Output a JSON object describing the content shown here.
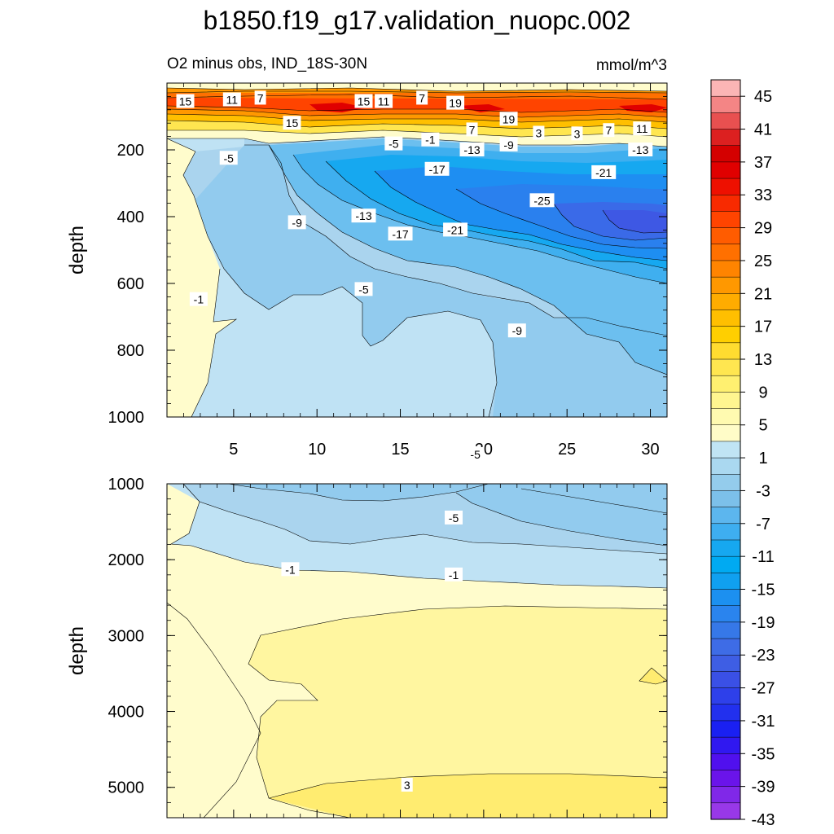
{
  "title": "b1850.f19_g17.validation_nuopc.002",
  "chart_data": {
    "type": "heatmap",
    "variable_label": "O2 minus obs, IND_18S-30N",
    "units": "mmol/m^3",
    "colorbar": {
      "tick_labels": [
        "45",
        "41",
        "37",
        "33",
        "29",
        "25",
        "21",
        "17",
        "13",
        "9",
        "5",
        "1",
        "-3",
        "-7",
        "-11",
        "-15",
        "-19",
        "-23",
        "-27",
        "-31",
        "-35",
        "-39",
        "-43"
      ],
      "colors_top_to_bottom": [
        "#fbb5b5",
        "#f48585",
        "#e85050",
        "#dc2020",
        "#d40000",
        "#e00000",
        "#ee1000",
        "#f82a00",
        "#ff4400",
        "#ff5c00",
        "#ff7000",
        "#ff8400",
        "#ff9800",
        "#ffac00",
        "#ffbf00",
        "#ffcf00",
        "#ffdc30",
        "#ffe650",
        "#fff070",
        "#fff590",
        "#fffab0",
        "#fffcc8",
        "#c0e4f4",
        "#aad8f0",
        "#94ccec",
        "#7cc0ea",
        "#5cb6ee",
        "#3eaef0",
        "#16a8f0",
        "#00aaf2",
        "#10a0f0",
        "#1c90f0",
        "#2a84ee",
        "#3678e8",
        "#3e6ce6",
        "#3e5ee4",
        "#3a50e6",
        "#2e40ea",
        "#2230ee",
        "#1a20f2",
        "#3018f0",
        "#5010ee",
        "#6a14ea",
        "#8028e8",
        "#9838e8"
      ]
    },
    "panels": [
      {
        "name": "upper",
        "ylabel": "depth",
        "y_range": [
          0,
          1000
        ],
        "y_ticks": [
          200,
          400,
          600,
          800,
          1000
        ],
        "x_range": [
          1,
          31
        ],
        "x_ticks": [
          5,
          10,
          15,
          20,
          25,
          30
        ],
        "contour_labels": [
          {
            "text": "15",
            "x": 2.1,
            "y": 55
          },
          {
            "text": "11",
            "x": 4.9,
            "y": 50
          },
          {
            "text": "7",
            "x": 6.6,
            "y": 45
          },
          {
            "text": "15",
            "x": 12.8,
            "y": 55
          },
          {
            "text": "11",
            "x": 14.0,
            "y": 55
          },
          {
            "text": "7",
            "x": 16.3,
            "y": 45
          },
          {
            "text": "19",
            "x": 18.3,
            "y": 60
          },
          {
            "text": "15",
            "x": 8.5,
            "y": 120
          },
          {
            "text": "19",
            "x": 21.5,
            "y": 108
          },
          {
            "text": "7",
            "x": 19.3,
            "y": 140
          },
          {
            "text": "3",
            "x": 23.3,
            "y": 150
          },
          {
            "text": "3",
            "x": 25.6,
            "y": 152
          },
          {
            "text": "7",
            "x": 27.5,
            "y": 142
          },
          {
            "text": "11",
            "x": 29.5,
            "y": 137
          },
          {
            "text": "-5",
            "x": 14.6,
            "y": 182
          },
          {
            "text": "-1",
            "x": 16.8,
            "y": 170
          },
          {
            "text": "-13",
            "x": 19.3,
            "y": 200
          },
          {
            "text": "-9",
            "x": 21.5,
            "y": 185
          },
          {
            "text": "-13",
            "x": 29.4,
            "y": 200
          },
          {
            "text": "-5",
            "x": 4.7,
            "y": 225
          },
          {
            "text": "-17",
            "x": 17.2,
            "y": 258
          },
          {
            "text": "-21",
            "x": 27.2,
            "y": 268
          },
          {
            "text": "-25",
            "x": 23.5,
            "y": 352
          },
          {
            "text": "-13",
            "x": 12.8,
            "y": 398
          },
          {
            "text": "-9",
            "x": 8.8,
            "y": 418
          },
          {
            "text": "-17",
            "x": 15.0,
            "y": 452
          },
          {
            "text": "-21",
            "x": 18.3,
            "y": 440
          },
          {
            "text": "-5",
            "x": 12.8,
            "y": 618
          },
          {
            "text": "-1",
            "x": 2.9,
            "y": 648
          },
          {
            "text": "-9",
            "x": 22.0,
            "y": 742
          },
          {
            "text": "-5",
            "x": 19.5,
            "y": 1112
          }
        ]
      },
      {
        "name": "lower",
        "ylabel": "depth",
        "y_range": [
          1000,
          5400
        ],
        "y_ticks": [
          1000,
          2000,
          3000,
          4000,
          5000
        ],
        "x_range": [
          1,
          31
        ],
        "contour_labels": [
          {
            "text": "-5",
            "x": 18.2,
            "y": 1450
          },
          {
            "text": "-1",
            "x": 8.4,
            "y": 2130
          },
          {
            "text": "-1",
            "x": 18.2,
            "y": 2200
          },
          {
            "text": "3",
            "x": 15.4,
            "y": 4970
          }
        ]
      }
    ]
  }
}
